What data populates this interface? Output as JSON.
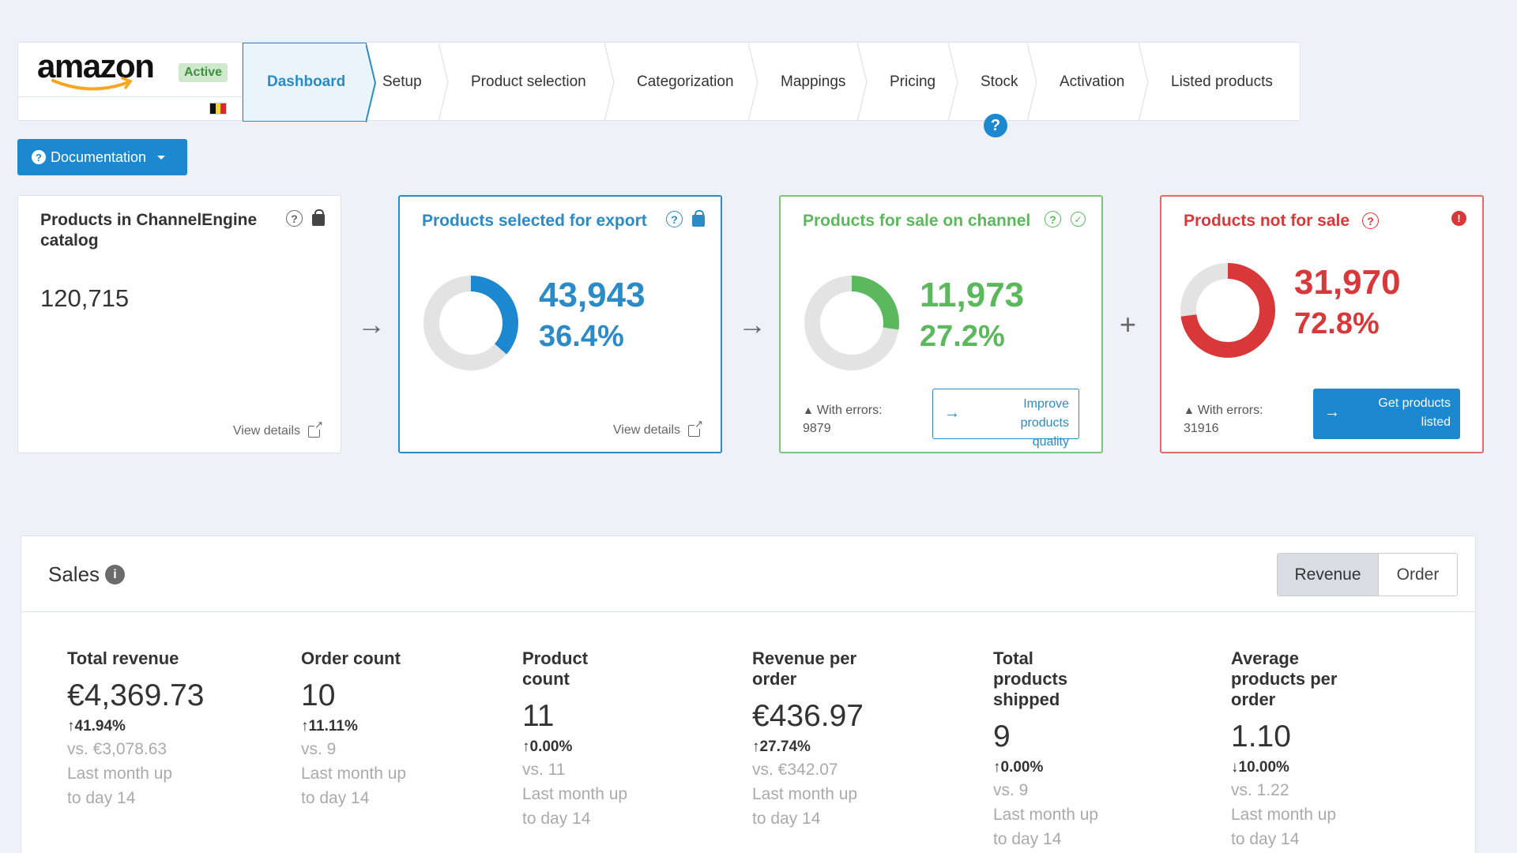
{
  "brand": {
    "logo_text": "amazon",
    "status": "Active",
    "flag_colors": [
      "#111111",
      "#f5d62a",
      "#e1262d"
    ]
  },
  "steps": [
    {
      "label": "Dashboard",
      "active": true
    },
    {
      "label": "Setup"
    },
    {
      "label": "Product selection"
    },
    {
      "label": "Categorization"
    },
    {
      "label": "Mappings"
    },
    {
      "label": "Pricing"
    },
    {
      "label": "Stock"
    },
    {
      "label": "Activation"
    },
    {
      "label": "Listed products"
    }
  ],
  "help_icon": "?",
  "documentation": {
    "label": "Documentation",
    "icon": "?"
  },
  "cards": {
    "catalog": {
      "title": "Products in ChannelEngine catalog",
      "value": "120,715",
      "view_details": "View details",
      "icons": [
        "question-icon",
        "lock-icon"
      ]
    },
    "export": {
      "title": "Products selected for export",
      "value": "43,943",
      "percent": "36.4%",
      "fraction": 0.364,
      "view_details": "View details",
      "color": "#1b88cf"
    },
    "for_sale": {
      "title": "Products for sale on channel",
      "value": "11,973",
      "percent": "27.2%",
      "fraction": 0.272,
      "errors_label": "With errors:",
      "errors_value": "9879",
      "button": "Improve products quality",
      "color": "#5cb85c"
    },
    "not_for_sale": {
      "title": "Products not for sale",
      "value": "31,970",
      "percent": "72.8%",
      "fraction": 0.728,
      "errors_label": "With errors:",
      "errors_value": "31916",
      "button": "Get products listed",
      "color": "#d9383a"
    }
  },
  "flow": {
    "arrow": "→",
    "plus": "+"
  },
  "sales": {
    "title": "Sales",
    "toggle": {
      "active": "Revenue",
      "inactive": "Order"
    },
    "metrics": [
      {
        "title": "Total revenue",
        "value": "€4,369.73",
        "change": "↑41.94%",
        "vs": "vs. €3,078.63",
        "period": "Last month up to day 14"
      },
      {
        "title": "Order count",
        "value": "10",
        "change": "↑11.11%",
        "vs": "vs. 9",
        "period": "Last month up to day 14"
      },
      {
        "title": "Product count",
        "value": "11",
        "change": "↑0.00%",
        "vs": "vs. 11",
        "period": "Last month up to day 14"
      },
      {
        "title": "Revenue per order",
        "value": "€436.97",
        "change": "↑27.74%",
        "vs": "vs. €342.07",
        "period": "Last month up to day 14"
      },
      {
        "title": "Total products shipped",
        "value": "9",
        "change": "↑0.00%",
        "vs": "vs. 9",
        "period": "Last month up to day 14"
      },
      {
        "title": "Average products per order",
        "value": "1.10",
        "change": "↓10.00%",
        "vs": "vs. 1.22",
        "period": "Last month up to day 14"
      }
    ]
  }
}
